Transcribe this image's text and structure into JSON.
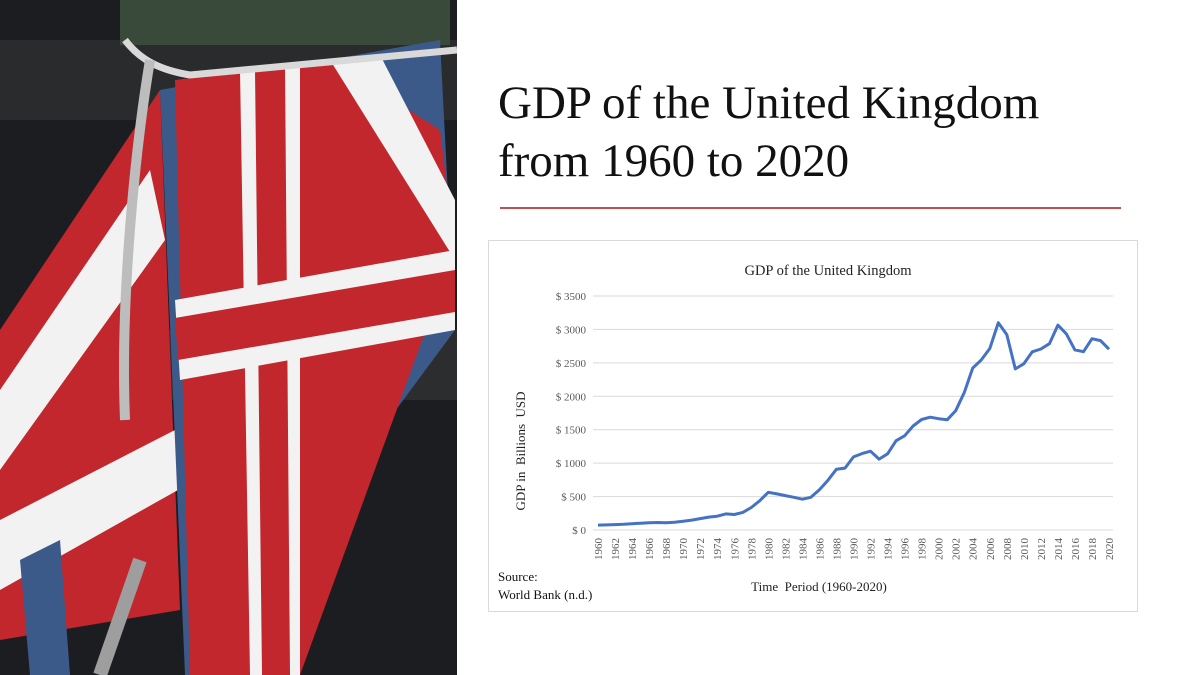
{
  "slide": {
    "title_line1": "GDP of the United Kingdom",
    "title_line2": "from 1960 to 2020",
    "accent_color": "#c0504d",
    "source_line1": "Source:",
    "source_line2": "World Bank (n.d.)",
    "photo": "union-jack-bunting-photo"
  },
  "chart_data": {
    "type": "line",
    "title": "GDP of the United Kingdom",
    "xlabel": "Time  Period (1960-2020)",
    "ylabel": "GDP in  Billions  USD",
    "ylim": [
      0,
      3500
    ],
    "yticks": [
      0,
      500,
      1000,
      1500,
      2000,
      2500,
      3000,
      3500
    ],
    "ytick_labels": [
      "$ 0",
      "$ 500",
      "$ 1000",
      "$ 1500",
      "$ 2000",
      "$ 2500",
      "$ 3000",
      "$ 3500"
    ],
    "xtick_labels": [
      "1960",
      "1962",
      "1964",
      "1966",
      "1968",
      "1970",
      "1972",
      "1974",
      "1976",
      "1978",
      "1980",
      "1982",
      "1984",
      "1986",
      "1988",
      "1990",
      "1992",
      "1994",
      "1996",
      "1998",
      "2000",
      "2002",
      "2004",
      "2006",
      "2008",
      "2010",
      "2012",
      "2014",
      "2016",
      "2018",
      "2020"
    ],
    "grid": true,
    "line_color": "#4472c4",
    "series": [
      {
        "x": [
          1960,
          1961,
          1962,
          1963,
          1964,
          1965,
          1966,
          1967,
          1968,
          1969,
          1970,
          1971,
          1972,
          1973,
          1974,
          1975,
          1976,
          1977,
          1978,
          1979,
          1980,
          1981,
          1982,
          1983,
          1984,
          1985,
          1986,
          1987,
          1988,
          1989,
          1990,
          1991,
          1992,
          1993,
          1994,
          1995,
          1996,
          1997,
          1998,
          1999,
          2000,
          2001,
          2002,
          2003,
          2004,
          2005,
          2006,
          2007,
          2008,
          2009,
          2010,
          2011,
          2012,
          2013,
          2014,
          2015,
          2016,
          2017,
          2018,
          2019,
          2020
        ],
        "values": [
          73,
          77,
          81,
          86,
          94,
          101,
          108,
          112,
          107,
          116,
          131,
          148,
          170,
          193,
          206,
          241,
          232,
          263,
          336,
          438,
          564,
          540,
          515,
          489,
          461,
          489,
          601,
          745,
          910,
          926,
          1093,
          1142,
          1179,
          1061,
          1140,
          1335,
          1409,
          1555,
          1653,
          1687,
          1665,
          1649,
          1785,
          2054,
          2422,
          2544,
          2714,
          3100,
          2923,
          2410,
          2486,
          2665,
          2707,
          2786,
          3065,
          2933,
          2694,
          2667,
          2861,
          2833,
          2705
        ]
      }
    ]
  }
}
